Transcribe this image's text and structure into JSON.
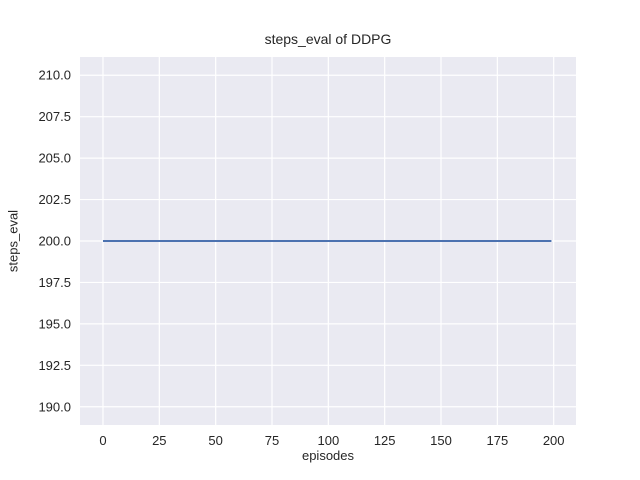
{
  "chart_data": {
    "type": "line",
    "title": "steps_eval of DDPG",
    "xlabel": "episodes",
    "ylabel": "steps_eval",
    "xlim": [
      -10.2,
      209.9
    ],
    "ylim": [
      188.9,
      211.1
    ],
    "xticks": {
      "values": [
        0,
        25,
        50,
        75,
        100,
        125,
        150,
        175,
        200
      ],
      "labels": [
        "0",
        "25",
        "50",
        "75",
        "100",
        "125",
        "150",
        "175",
        "200"
      ]
    },
    "yticks": {
      "values": [
        190.0,
        192.5,
        195.0,
        197.5,
        200.0,
        202.5,
        205.0,
        207.5,
        210.0
      ],
      "labels": [
        "190.0",
        "192.5",
        "195.0",
        "197.5",
        "200.0",
        "202.5",
        "205.0",
        "207.5",
        "210.0"
      ]
    },
    "grid": true,
    "legend": "none",
    "series": [
      {
        "name": "DDPG steps_eval",
        "x": [
          0,
          199
        ],
        "y": [
          200,
          200
        ],
        "note": "constant value 200 across all episodes (flat horizontal line)",
        "color": "#4c72b0",
        "linewidth": 2
      }
    ],
    "colors": {
      "figure_background": "#ffffff",
      "axes_background": "#eaeaf2",
      "gridline": "#ffffff",
      "line": "#4c72b0",
      "text": "#262626"
    }
  }
}
